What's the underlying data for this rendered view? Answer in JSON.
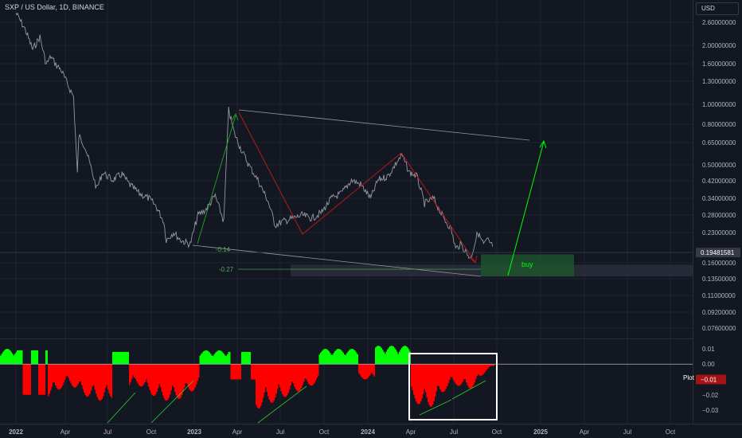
{
  "header": {
    "title": "SXP / US Dollar, 1D, BINANCE",
    "currency": "USD"
  },
  "colors": {
    "background": "#131722",
    "price_line": "#9598a1",
    "up": "#00ff00",
    "down": "#ff0000",
    "accent_green": "#4caf50",
    "buy_zone": "#1e5a2c"
  },
  "chart_data": [
    {
      "type": "line",
      "title": "SXP / US Dollar, 1D, BINANCE",
      "y_scale": "log",
      "ylim": [
        0.066,
        3.0
      ],
      "y_ticks": [
        "2.60000000",
        "2.00000000",
        "1.60000000",
        "1.30000000",
        "1.00000000",
        "0.80000000",
        "0.65000000",
        "0.50000000",
        "0.42000000",
        "0.34000000",
        "0.28000000",
        "0.23000000",
        "0.16000000",
        "0.13500000",
        "0.11000000",
        "0.09200000",
        "0.07600000"
      ],
      "x_ticks": [
        "2022",
        "Apr",
        "Jul",
        "Oct",
        "2023",
        "Apr",
        "Jul",
        "Oct",
        "2024",
        "Apr",
        "Jul",
        "Oct",
        "2025",
        "Apr",
        "Jul",
        "Oct"
      ],
      "last_price": "0.19481581",
      "series": [
        {
          "x": [
            "2022-01-01",
            "2022-01-20",
            "2022-02-05",
            "2022-02-20",
            "2022-03-05",
            "2022-03-15",
            "2022-03-25",
            "2022-04-05",
            "2022-04-20",
            "2022-05-01",
            "2022-05-09",
            "2022-05-12",
            "2022-05-25",
            "2022-06-10",
            "2022-06-18",
            "2022-07-01",
            "2022-07-20",
            "2022-08-10",
            "2022-08-25",
            "2022-09-15",
            "2022-10-05",
            "2022-10-20",
            "2022-11-05",
            "2022-11-10",
            "2022-11-25",
            "2022-12-10",
            "2022-12-30",
            "2023-01-15",
            "2023-02-01",
            "2023-02-20",
            "2023-03-10",
            "2023-03-20",
            "2023-04-01",
            "2023-04-15",
            "2023-05-01",
            "2023-05-20",
            "2023-06-10",
            "2023-06-25",
            "2023-07-10",
            "2023-08-01",
            "2023-08-20",
            "2023-09-10",
            "2023-09-30",
            "2023-10-20",
            "2023-11-10",
            "2023-12-01",
            "2023-12-20",
            "2024-01-10",
            "2024-01-25",
            "2024-02-15",
            "2024-03-05",
            "2024-03-15",
            "2024-03-30",
            "2024-04-15",
            "2024-05-01",
            "2024-05-20",
            "2024-06-10",
            "2024-06-25",
            "2024-07-05",
            "2024-07-15",
            "2024-08-05",
            "2024-08-20",
            "2024-09-01",
            "2024-09-10",
            "2024-09-20"
          ],
          "y": [
            2.9,
            2.4,
            1.9,
            2.2,
            1.6,
            1.75,
            1.6,
            1.5,
            1.25,
            1.1,
            0.45,
            0.7,
            0.62,
            0.45,
            0.38,
            0.46,
            0.42,
            0.45,
            0.4,
            0.36,
            0.34,
            0.31,
            0.26,
            0.21,
            0.23,
            0.21,
            0.2,
            0.28,
            0.3,
            0.35,
            0.26,
            0.95,
            0.72,
            0.6,
            0.5,
            0.42,
            0.33,
            0.25,
            0.26,
            0.27,
            0.28,
            0.27,
            0.29,
            0.34,
            0.36,
            0.42,
            0.4,
            0.34,
            0.42,
            0.44,
            0.52,
            0.56,
            0.46,
            0.44,
            0.32,
            0.34,
            0.27,
            0.24,
            0.19,
            0.2,
            0.17,
            0.23,
            0.2,
            0.21,
            0.195
          ]
        }
      ],
      "annotations": [
        {
          "label": "buy",
          "type": "zone"
        },
        {
          "label": "-0.14",
          "type": "fib_level"
        },
        {
          "label": "-0.27",
          "type": "fib_level"
        }
      ]
    },
    {
      "type": "bar",
      "title": "",
      "ylim": [
        -0.036,
        0.014
      ],
      "y_ticks": [
        "0.01",
        "0.00",
        "-0.01",
        "-0.02",
        "-0.03"
      ],
      "legend": {
        "name": "Plot",
        "value": "−0.01"
      }
    }
  ]
}
